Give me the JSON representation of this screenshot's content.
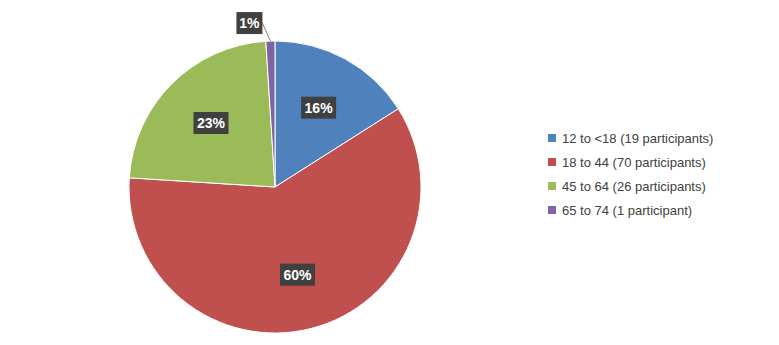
{
  "chart_data": {
    "type": "pie",
    "categories": [
      "12 to <18 (19 participants)",
      "18 to 44 (70 participants)",
      "45 to 64 (26 participants)",
      "65 to 74 (1 participant)"
    ],
    "values": [
      16,
      60,
      23,
      1
    ],
    "value_labels": [
      "16%",
      "60%",
      "23%",
      "1%"
    ],
    "colors": [
      "#4f81bd",
      "#c0504d",
      "#9bbb59",
      "#8064a2"
    ],
    "data_labels": true
  }
}
